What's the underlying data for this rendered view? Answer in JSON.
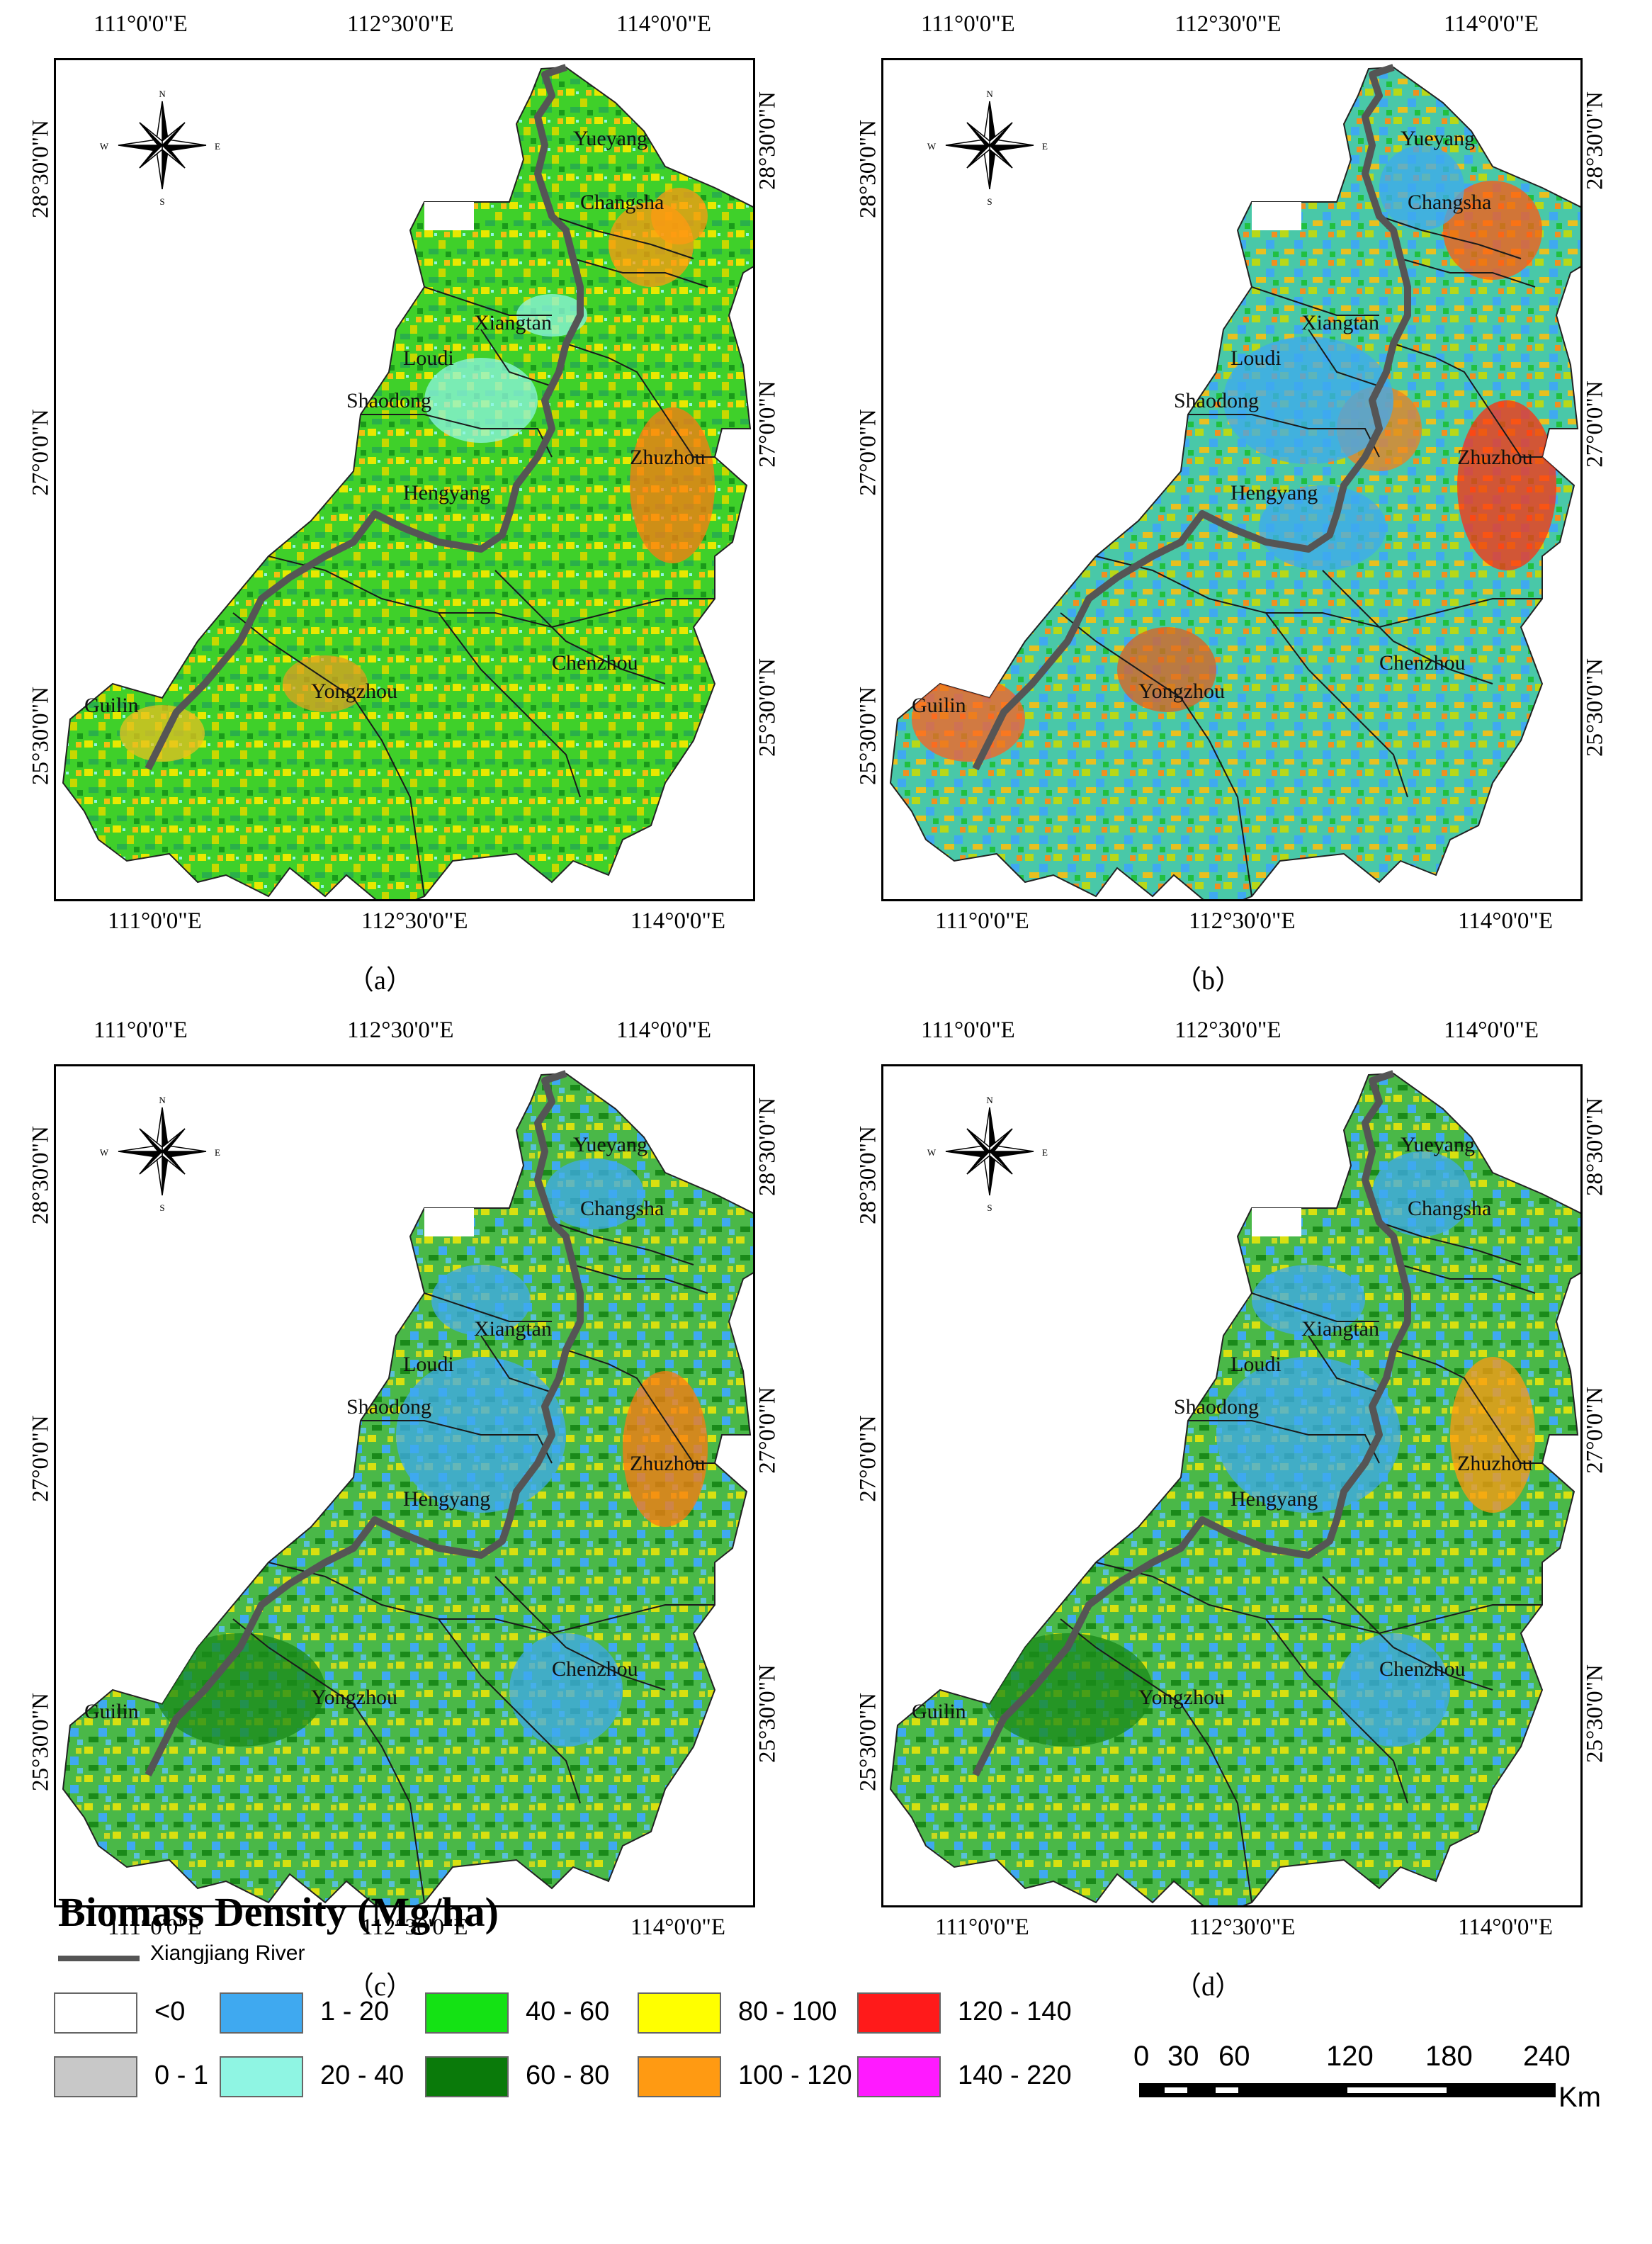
{
  "colors": {
    "lt0": "#ffffff",
    "b0_1": "#c8c8c8",
    "b1_20": "#3fa9f0",
    "b20_40": "#8ff5e3",
    "b40_60": "#14e214",
    "b60_80": "#0a7a0a",
    "b80_100": "#ffff00",
    "b100_120": "#ff9a12",
    "b120_140": "#ff1a1a",
    "b140_220": "#ff1aff",
    "river": "#555555",
    "boundary": "#222222"
  },
  "axes": {
    "top_x": [
      "111°0'0\"E",
      "112°30'0\"E",
      "114°0'0\"E"
    ],
    "bottom_x": [
      "111°0'0\"E",
      "112°30'0\"E",
      "114°0'0\"E"
    ],
    "left_y": [
      "28°30'0\"N",
      "27°0'0\"N",
      "25°30'0\"N"
    ],
    "right_y": [
      "28°30'0\"N",
      "27°0'0\"N",
      "25°30'0\"N"
    ]
  },
  "compass": {
    "n": "N",
    "s": "S",
    "e": "E",
    "w": "W"
  },
  "cities": [
    "Yueyang",
    "Changsha",
    "Xiangtan",
    "Loudi",
    "Shaodong",
    "Zhuzhou",
    "Hengyang",
    "Chenzhou",
    "Yongzhou",
    "Guilin"
  ],
  "panels": [
    {
      "caption": "（a）",
      "dominant": "mixed-green-yellow-orange"
    },
    {
      "caption": "（b）",
      "dominant": "mixed-cyan-orange-red"
    },
    {
      "caption": "（c）",
      "dominant": "mixed-blue-green-yellow"
    },
    {
      "caption": "（d）",
      "dominant": "mixed-blue-green-yellow"
    }
  ],
  "legend": {
    "title": "Biomass Density (Mg/ha)",
    "river_label": "Xiangjiang River",
    "classes": [
      {
        "label": "<0",
        "color_key": "lt0"
      },
      {
        "label": "0 - 1",
        "color_key": "b0_1"
      },
      {
        "label": "1 - 20",
        "color_key": "b1_20"
      },
      {
        "label": "20 - 40",
        "color_key": "b20_40"
      },
      {
        "label": "40 - 60",
        "color_key": "b40_60"
      },
      {
        "label": "60 - 80",
        "color_key": "b60_80"
      },
      {
        "label": "80 - 100",
        "color_key": "b80_100"
      },
      {
        "label": "100 - 120",
        "color_key": "b100_120"
      },
      {
        "label": "120 - 140",
        "color_key": "b120_140"
      },
      {
        "label": "140 - 220",
        "color_key": "b140_220"
      }
    ]
  },
  "scalebar": {
    "labels": [
      "0",
      "30",
      "60",
      "120",
      "180",
      "240"
    ],
    "unit": "Km"
  }
}
